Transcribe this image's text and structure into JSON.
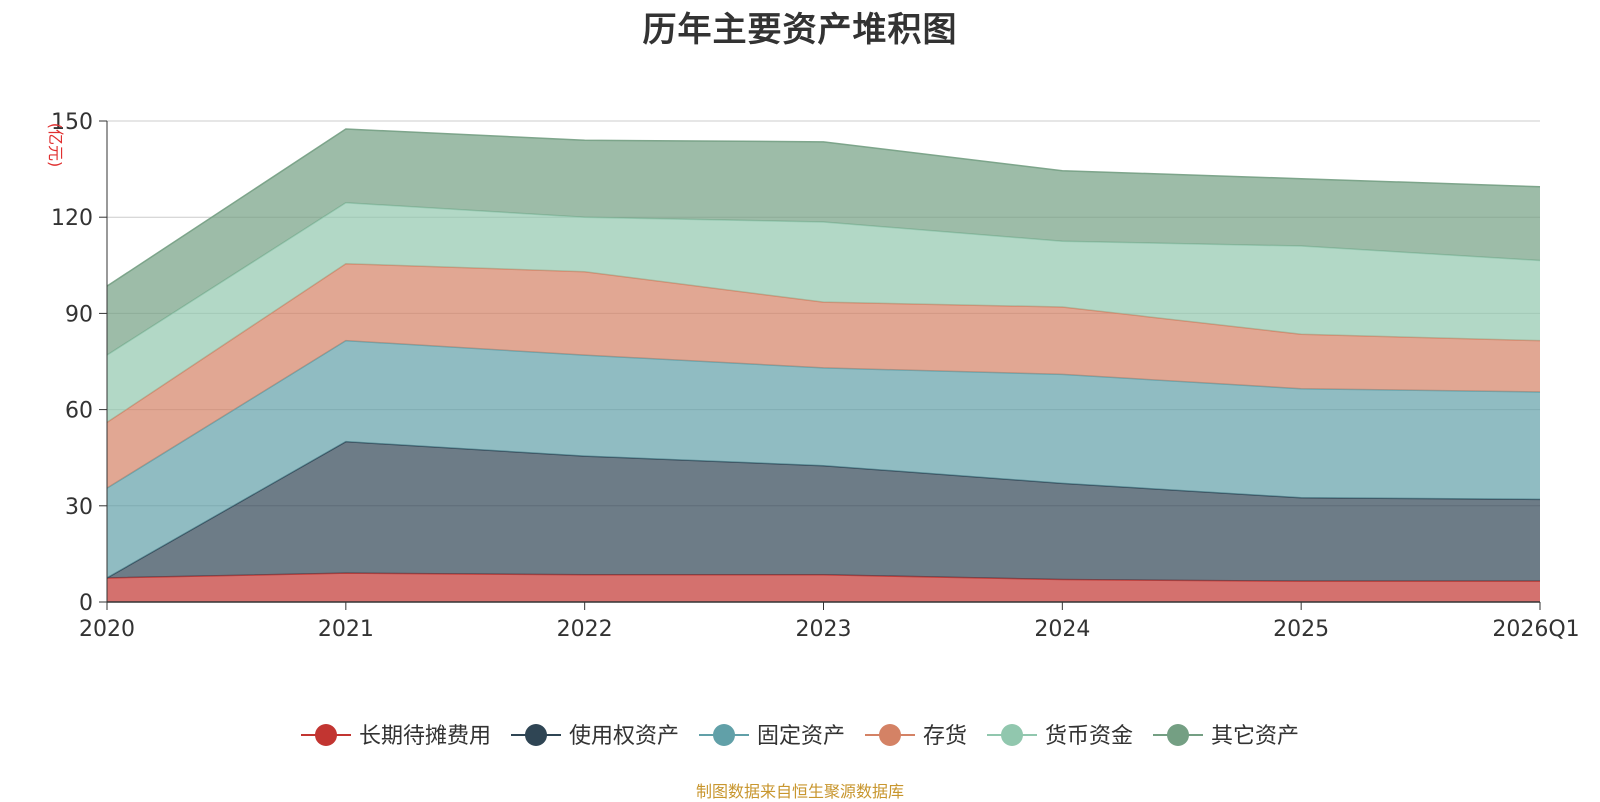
{
  "title": "历年主要资产堆积图",
  "footer": "制图数据来自恒生聚源数据库",
  "chart_data": {
    "type": "area",
    "stacked": true,
    "title": "历年主要资产堆积图",
    "ylabel": "(亿元)",
    "ylim": [
      0,
      150
    ],
    "yticks": [
      0,
      30,
      60,
      90,
      120,
      150
    ],
    "categories": [
      "2020",
      "2021",
      "2022",
      "2023",
      "2024",
      "2025",
      "2026Q1"
    ],
    "legend_position": "bottom",
    "series": [
      {
        "name": "长期待摊费用",
        "color": "#c23531",
        "values": [
          7.5,
          9.0,
          8.5,
          8.5,
          7.0,
          6.5,
          6.5
        ]
      },
      {
        "name": "使用权资产",
        "color": "#2f4554",
        "values": [
          0,
          41.0,
          37.0,
          34.0,
          30.0,
          26.0,
          25.5
        ]
      },
      {
        "name": "固定资产",
        "color": "#61a0a8",
        "values": [
          28.0,
          31.5,
          31.5,
          30.5,
          34.0,
          34.0,
          33.5
        ]
      },
      {
        "name": "存货",
        "color": "#d48265",
        "values": [
          20.5,
          24.0,
          26.0,
          20.5,
          21.0,
          17.0,
          16.0
        ]
      },
      {
        "name": "货币资金",
        "color": "#91c7ae",
        "values": [
          21.0,
          19.0,
          17.0,
          25.0,
          20.5,
          27.5,
          25.0
        ]
      },
      {
        "name": "其它资产",
        "color": "#749f83",
        "values": [
          21.5,
          23.0,
          24.0,
          25.0,
          22.0,
          21.0,
          23.0
        ]
      }
    ]
  }
}
